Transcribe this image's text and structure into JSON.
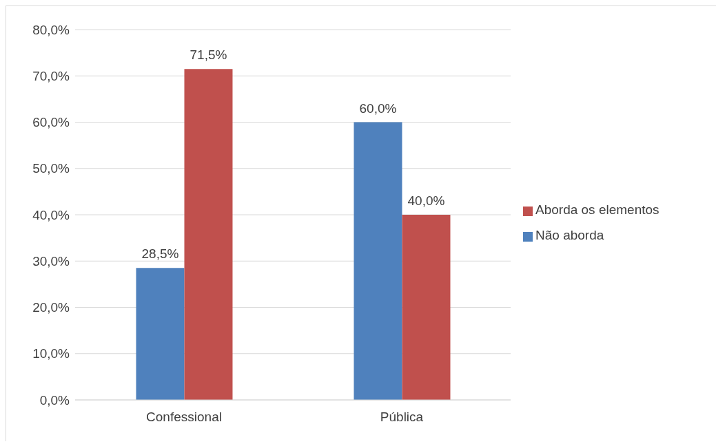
{
  "chart_data": {
    "type": "bar",
    "categories": [
      "Confessional",
      "Pública"
    ],
    "series": [
      {
        "name": "Não aborda",
        "color": "#4f81bd",
        "values": [
          28.5,
          60.0
        ],
        "value_labels": [
          "28,5%",
          "60,0%"
        ]
      },
      {
        "name": "Aborda os elementos",
        "color": "#c0504d",
        "values": [
          71.5,
          40.0
        ],
        "value_labels": [
          "71,5%",
          "40,0%"
        ]
      }
    ],
    "ylim": [
      0,
      80
    ],
    "yticks": [
      {
        "value": 0,
        "label": "0,0%"
      },
      {
        "value": 10,
        "label": "10,0%"
      },
      {
        "value": 20,
        "label": "20,0%"
      },
      {
        "value": 30,
        "label": "30,0%"
      },
      {
        "value": 40,
        "label": "40,0%"
      },
      {
        "value": 50,
        "label": "50,0%"
      },
      {
        "value": 60,
        "label": "60,0%"
      },
      {
        "value": 70,
        "label": "70,0%"
      },
      {
        "value": 80,
        "label": "80,0%"
      }
    ],
    "grid": "y",
    "legend": "right"
  }
}
